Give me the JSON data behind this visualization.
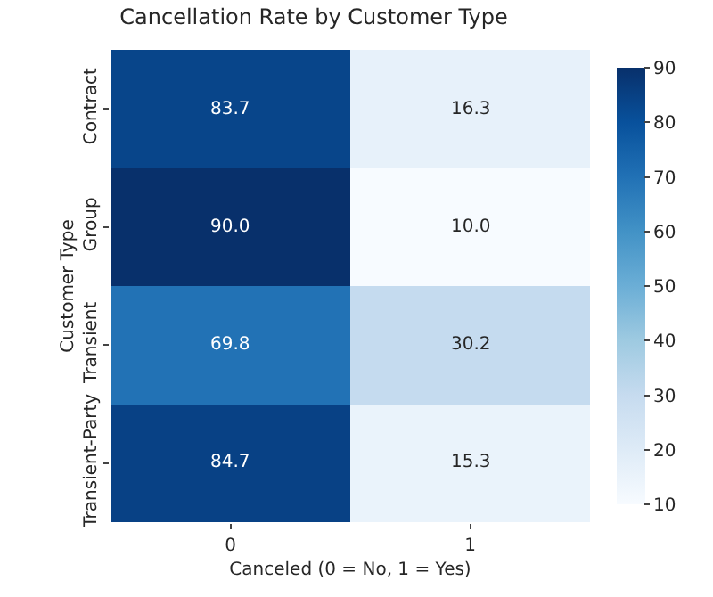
{
  "chart_data": {
    "type": "heatmap",
    "title": "Cancellation Rate by Customer Type",
    "xlabel": "Canceled (0 = No, 1 = Yes)",
    "ylabel": "Customer Type",
    "categories": [
      "0",
      "1"
    ],
    "y_categories": [
      "Contract",
      "Group",
      "Transient",
      "Transient-Party"
    ],
    "cells": [
      [
        83.7,
        16.3
      ],
      [
        90.0,
        10.0
      ],
      [
        69.8,
        30.2
      ],
      [
        84.7,
        15.3
      ]
    ],
    "cell_labels": [
      [
        "83.7",
        "16.3"
      ],
      [
        "90.0",
        "10.0"
      ],
      [
        "69.8",
        "30.2"
      ],
      [
        "84.7",
        "15.3"
      ]
    ],
    "clim": [
      10,
      90
    ],
    "cticks": [
      10,
      20,
      30,
      40,
      50,
      60,
      70,
      80,
      90
    ]
  }
}
